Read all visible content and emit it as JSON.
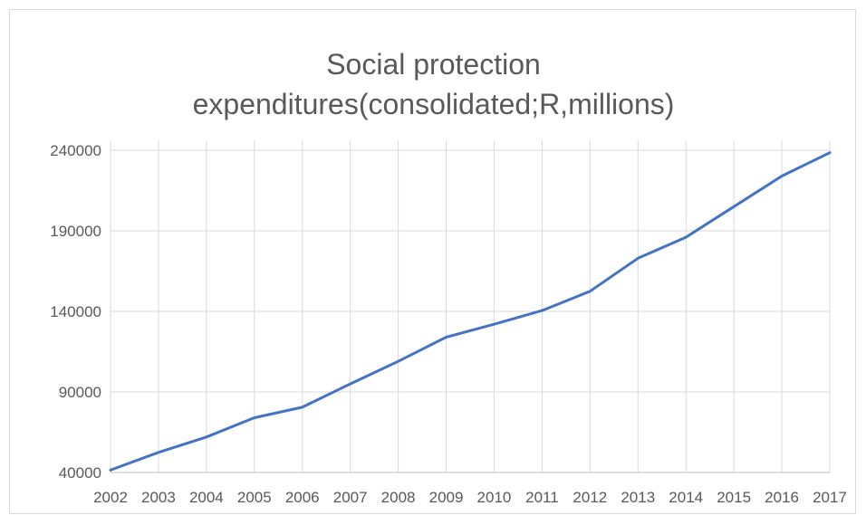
{
  "chart_data": {
    "type": "line",
    "title_lines": [
      "Social protection",
      "expenditures(consolidated;R,millions)"
    ],
    "xlabel": "",
    "ylabel": "",
    "categories": [
      "2002",
      "2003",
      "2004",
      "2005",
      "2006",
      "2007",
      "2008",
      "2009",
      "2010",
      "2011",
      "2012",
      "2013",
      "2014",
      "2015",
      "2016",
      "2017"
    ],
    "series": [
      {
        "values": [
          41500,
          52500,
          62000,
          74000,
          80500,
          95000,
          109000,
          124000,
          132000,
          140500,
          152500,
          173000,
          186000,
          205000,
          224000,
          238500
        ],
        "color": "#4472C4"
      }
    ],
    "ylim": [
      40000,
      250000
    ],
    "yticks": [
      40000,
      90000,
      140000,
      190000,
      240000
    ],
    "grid": true,
    "legend": "none"
  }
}
